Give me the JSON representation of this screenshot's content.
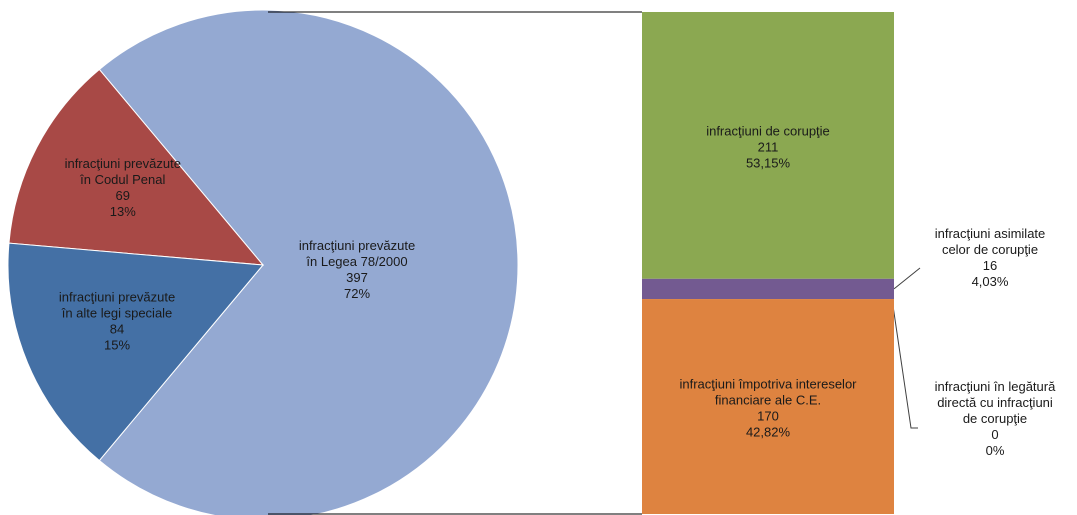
{
  "chart_data": {
    "type": "bar-of-pie",
    "pie": {
      "slices": [
        {
          "name_lines": [
            "infracţiuni  prevăzute",
            "în Legea 78/2000"
          ],
          "value": "397",
          "percent": "72%",
          "numeric": 397,
          "color": "#94A9D2"
        },
        {
          "name_lines": [
            "infracţiuni  prevăzute",
            "în alte legi speciale"
          ],
          "value": "84",
          "percent": "15%",
          "numeric": 84,
          "color": "#4470A5"
        },
        {
          "name_lines": [
            "infracţiuni  prevăzute",
            "în Codul Penal"
          ],
          "value": "69",
          "percent": "13%",
          "numeric": 69,
          "color": "#A84946"
        }
      ]
    },
    "bar": {
      "segments": [
        {
          "name_lines": [
            "infracţiuni  de corupţie"
          ],
          "value": "211",
          "percent": "53,15%",
          "numeric": 211,
          "color": "#8BA851"
        },
        {
          "name_lines": [
            "infracţiuni  asimilate",
            "celor de corupţie"
          ],
          "value": "16",
          "percent": "4,03%",
          "numeric": 16,
          "color": "#735A91"
        },
        {
          "name_lines": [
            "infracţiuni  împotriva  intereselor",
            "financiare  ale C.E."
          ],
          "value": "170",
          "percent": "42,82%",
          "numeric": 170,
          "color": "#DE8340"
        },
        {
          "name_lines": [
            "infracţiuni  în legătură",
            "directă cu infracţiuni",
            "de corupţie"
          ],
          "value": "0",
          "percent": "0%",
          "numeric": 0,
          "color": "#4BACC6"
        }
      ]
    }
  }
}
